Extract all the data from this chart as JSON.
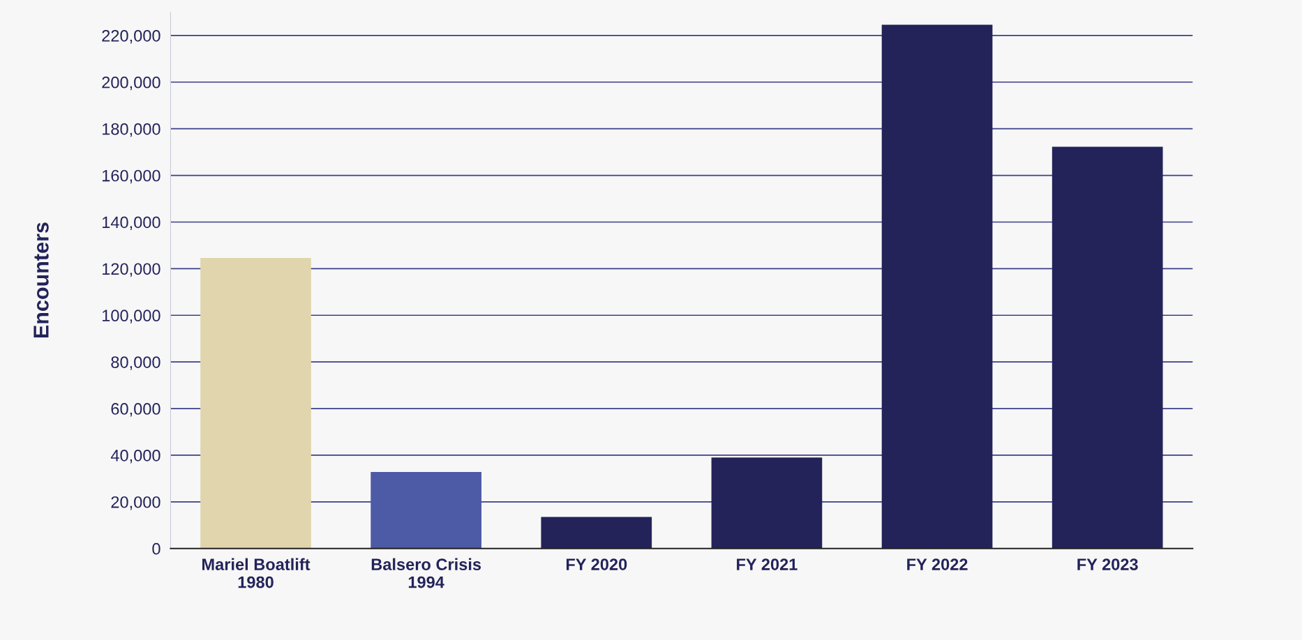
{
  "chart_data": {
    "type": "bar",
    "ylabel": "Encounters",
    "categories": [
      "Mariel Boatlift\n1980",
      "Balsero Crisis\n1994",
      "FY 2020",
      "FY 2021",
      "FY 2022",
      "FY 2023"
    ],
    "values": [
      124600,
      32800,
      13500,
      39000,
      224600,
      172300
    ],
    "colors": [
      "#e0d5ad",
      "#4d5aa5",
      "#23235a",
      "#23235a",
      "#23235a",
      "#23235a"
    ],
    "ylim": [
      0,
      230000
    ],
    "yticks": [
      {
        "value": 0,
        "label": "0"
      },
      {
        "value": 20000,
        "label": "20,000"
      },
      {
        "value": 40000,
        "label": "40,000"
      },
      {
        "value": 60000,
        "label": "60,000"
      },
      {
        "value": 80000,
        "label": "80,000"
      },
      {
        "value": 100000,
        "label": "100,000"
      },
      {
        "value": 120000,
        "label": "120,000"
      },
      {
        "value": 140000,
        "label": "140,000"
      },
      {
        "value": 160000,
        "label": "160,000"
      },
      {
        "value": 180000,
        "label": "180,000"
      },
      {
        "value": 200000,
        "label": "200,000"
      },
      {
        "value": 220000,
        "label": "220,000"
      }
    ],
    "grid": "y",
    "legend": false
  }
}
